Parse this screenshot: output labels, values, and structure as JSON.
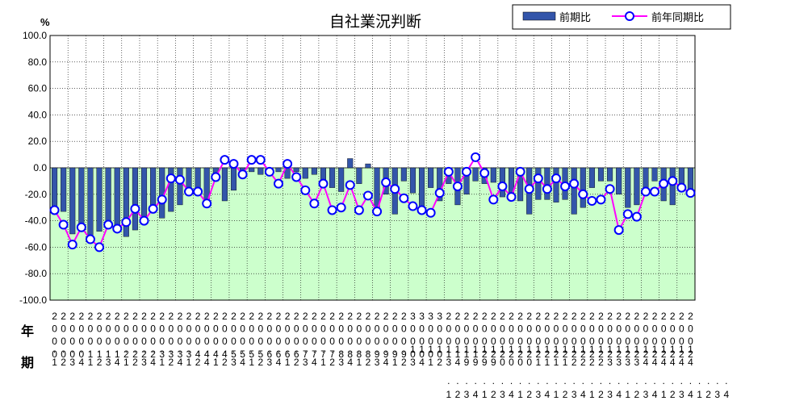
{
  "chart_data": {
    "type": "bar+line",
    "title": "自社業況判断",
    "unit_label": "%",
    "ylim": [
      -100,
      100
    ],
    "yticks": [
      "100.0",
      "80.0",
      "60.0",
      "40.0",
      "20.0",
      "0.0",
      "-20.0",
      "-40.0",
      "-60.0",
      "-80.0",
      "-100.0"
    ],
    "row_label_year": "年",
    "row_label_quarter": "期",
    "x_year_digits": [
      "2000",
      "2000",
      "2000",
      "2000",
      "2001",
      "2001",
      "2001",
      "2001",
      "2002",
      "2002",
      "2002",
      "2002",
      "2003",
      "2003",
      "2003",
      "2003",
      "2004",
      "2004",
      "2004",
      "2004",
      "2005",
      "2005",
      "2005",
      "2005",
      "2006",
      "2006",
      "2006",
      "2006",
      "2007",
      "2007",
      "2007",
      "2007",
      "2008",
      "2008",
      "2008",
      "2008",
      "2009",
      "2009",
      "2009",
      "2009",
      "3000",
      "3000",
      "3000",
      "3000",
      "2001",
      "2001",
      "2001",
      "2001",
      "2002",
      "2002",
      "2002",
      "2002",
      "2002",
      "2002",
      "2002",
      "2002",
      "2002",
      "2002",
      "2002",
      "2002",
      "2002",
      "2002",
      "2002",
      "2002",
      "2002",
      "2002",
      "2002",
      "2002",
      "2002",
      "2002",
      "2002",
      "2002"
    ],
    "x_dot_row": [
      ".",
      ".",
      ".",
      ".",
      ".",
      ".",
      ".",
      ".",
      ".",
      ".",
      ".",
      ".",
      ".",
      ".",
      ".",
      ".",
      ".",
      ".",
      ".",
      ".",
      ".",
      ".",
      ".",
      ".",
      ".",
      ".",
      ".",
      ".",
      ".",
      ".",
      ".",
      ".",
      ".",
      ".",
      ".",
      ".",
      ".",
      ".",
      ".",
      ".",
      "1",
      "1",
      "1",
      "1",
      "1",
      "1",
      "1",
      "1",
      "1",
      "1",
      "1",
      "1",
      "1",
      "1",
      "1",
      "1",
      "1",
      "1",
      "1",
      "1",
      "1",
      "1",
      "1",
      "1",
      "1",
      "1",
      "1",
      "1",
      "1",
      "1",
      "1",
      "1"
    ],
    "x_second_digits": [
      "1",
      "2",
      "3",
      "4",
      "1",
      "2",
      "3",
      "4",
      "1",
      "2",
      "3",
      "4",
      "1",
      "2",
      "4",
      "1",
      "2",
      "4",
      "1",
      "2",
      "3",
      "4",
      "1",
      "2",
      "3",
      "4",
      "1",
      "2",
      "3",
      "4",
      "1",
      "2",
      "3",
      "4",
      "1",
      "2",
      "3",
      "4",
      "1",
      "2",
      "3",
      "4",
      "1",
      "2",
      "3",
      "4",
      "9",
      "9",
      "9",
      "9",
      "0",
      "0",
      "0",
      "0",
      "1",
      "1",
      "1",
      "1",
      "2",
      "2",
      "2",
      "2",
      "3",
      "3",
      "3",
      "3",
      "4",
      "4",
      "4",
      "4",
      "4",
      "4"
    ],
    "x_quarter_row": [
      "",
      "",
      "",
      "",
      "",
      "",
      "",
      "",
      "",
      "",
      "",
      "",
      "",
      "",
      "",
      "",
      "",
      "",
      "",
      "",
      "",
      "",
      "",
      "",
      "",
      "",
      "",
      "",
      "",
      "",
      "",
      "",
      "",
      "",
      "",
      "",
      "",
      "",
      "",
      "",
      "",
      "",
      "",
      "",
      "1",
      "2",
      "3",
      "4",
      "1",
      "2",
      "3",
      "4",
      "1",
      "2",
      "3",
      "4",
      "1",
      "2",
      "3",
      "4",
      "1",
      "2",
      "3",
      "4",
      "1",
      "2",
      "3",
      "4",
      "1",
      "2",
      "3",
      "4",
      "1",
      "2",
      "3",
      "4"
    ],
    "series": [
      {
        "name": "前期比",
        "type": "bar",
        "color": "#3355aa",
        "values": [
          -32,
          -33,
          -50,
          -46,
          -51,
          -48,
          -46,
          -48,
          -52,
          -47,
          -38,
          -34,
          -38,
          -33,
          -28,
          -18,
          -18,
          -30,
          -10,
          -25,
          -17,
          -5,
          -3,
          -5,
          -2,
          -3,
          -8,
          -3,
          -8,
          -5,
          -10,
          -15,
          -18,
          7,
          -12,
          3,
          -35,
          -20,
          -35,
          -10,
          -19,
          -30,
          -15,
          -25,
          -12,
          -28,
          -20,
          -10,
          -12,
          -11,
          -22,
          -24,
          -25,
          -35,
          -24,
          -24,
          -26,
          -24,
          -35,
          -30,
          -15,
          -10,
          -10,
          -20,
          -30,
          -28,
          -15,
          -10,
          -25,
          -28,
          -12,
          -20
        ]
      },
      {
        "name": "前年同期比",
        "type": "line",
        "color": "#ff00ff",
        "values": [
          -32,
          -43,
          -58,
          -45,
          -54,
          -60,
          -43,
          -46,
          -41,
          -31,
          -40,
          -31,
          -24,
          -8,
          -9,
          -18,
          -18,
          -27,
          -7,
          6,
          3,
          -5,
          6,
          6,
          -3,
          -12,
          3,
          -7,
          -17,
          -27,
          -12,
          -32,
          -30,
          -13,
          -32,
          -21,
          -33,
          -11,
          -16,
          -23,
          -29,
          -32,
          -34,
          -19,
          -3,
          -14,
          -3,
          8,
          -4,
          -24,
          -14,
          -22,
          -3,
          -16,
          -8,
          -16,
          -8,
          -14,
          -12,
          -20,
          -25,
          -24,
          -16,
          -47,
          -35,
          -37,
          -18,
          -18,
          -12,
          -10,
          -15,
          -19
        ]
      }
    ],
    "legend": {
      "position": "top-right",
      "bar_label": "前期比",
      "line_label": "前年同期比"
    },
    "grid": true
  }
}
